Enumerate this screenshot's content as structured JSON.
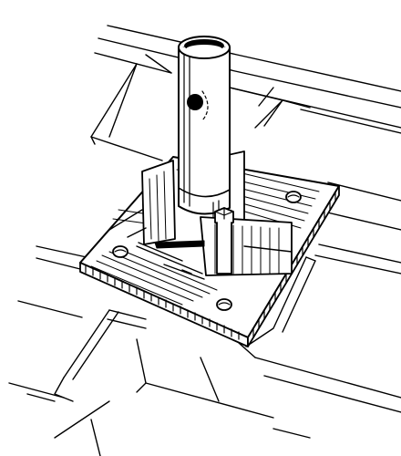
{
  "figure": {
    "subject": "pipe-base-mount-on-shingled-roof",
    "style": "black-and-white-line-drawing",
    "colors": {
      "ink": "#000000",
      "paper": "#ffffff"
    },
    "components": [
      "roof-shingles",
      "square-base-plate",
      "vertical-pipe-post",
      "gusset-plates",
      "anchor-bolts",
      "hex-bolt"
    ]
  }
}
